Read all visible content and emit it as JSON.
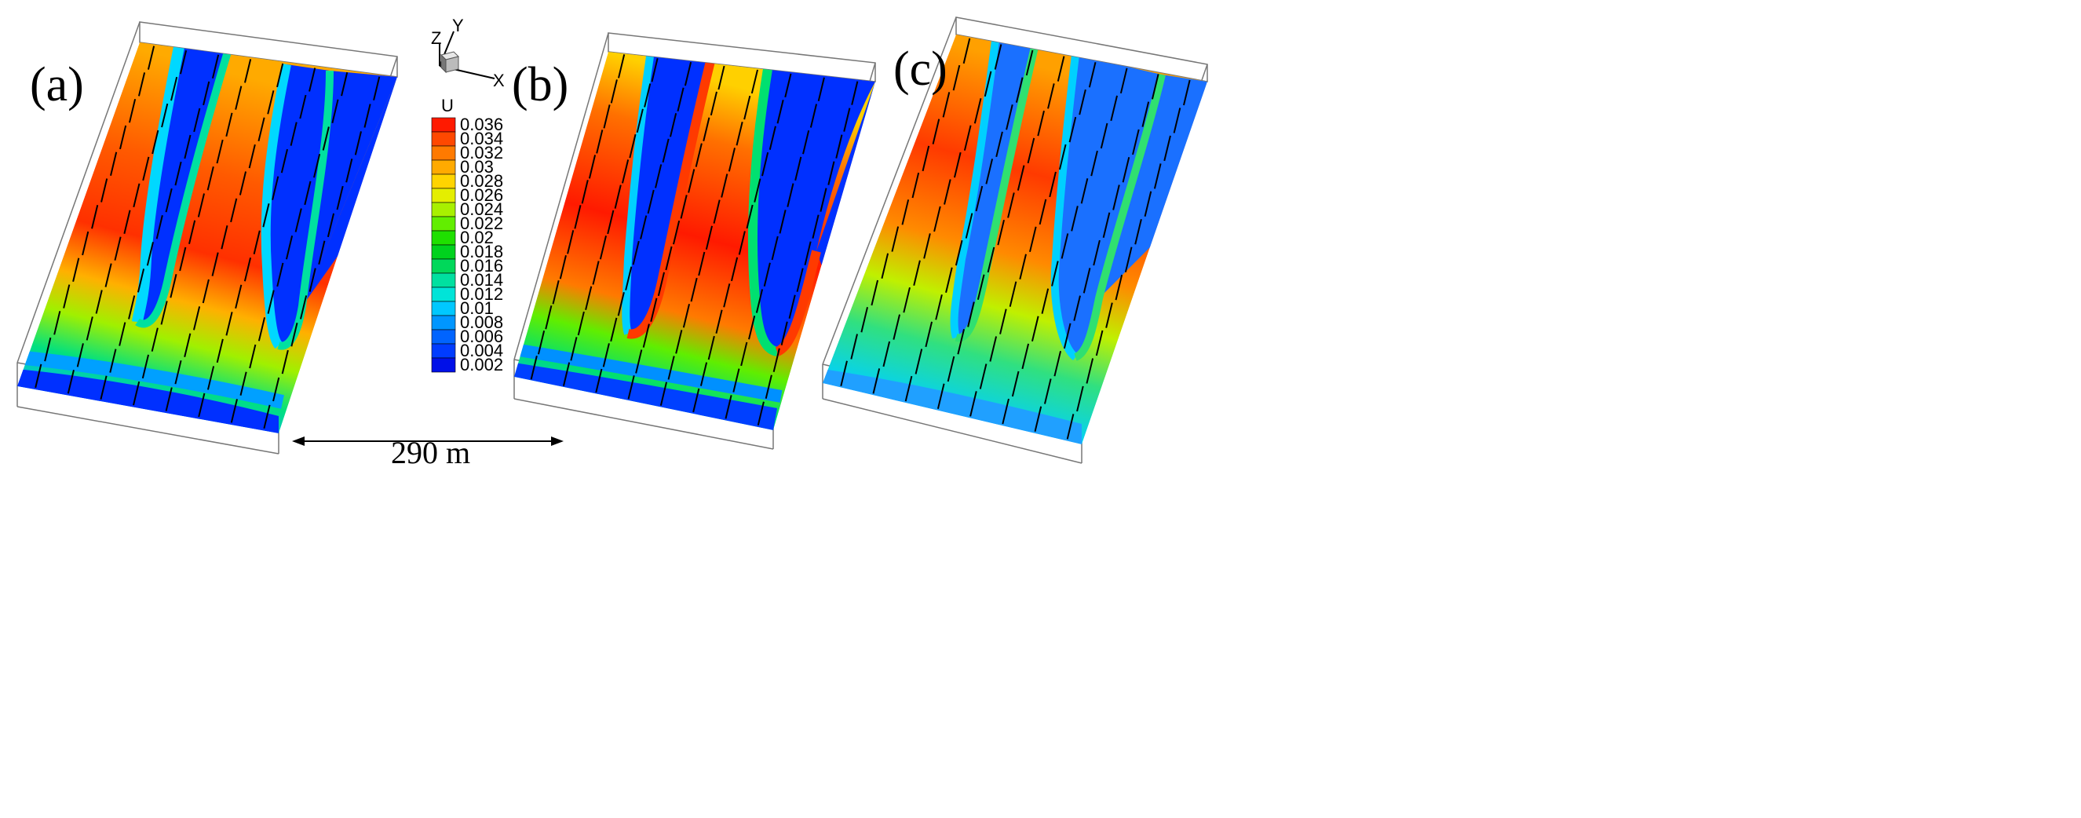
{
  "panels": [
    {
      "label": "(a)"
    },
    {
      "label": "(b)"
    },
    {
      "label": "(c)"
    }
  ],
  "axes_triad": {
    "z": "Z",
    "y": "Y",
    "x": "X"
  },
  "legend": {
    "title": "U",
    "levels": [
      "0.036",
      "0.034",
      "0.032",
      "0.03",
      "0.028",
      "0.026",
      "0.024",
      "0.022",
      "0.02",
      "0.018",
      "0.016",
      "0.014",
      "0.012",
      "0.01",
      "0.008",
      "0.006",
      "0.004",
      "0.002"
    ],
    "colors": [
      "#ff1a00",
      "#ff4800",
      "#ff7a00",
      "#ffaa00",
      "#ffd400",
      "#e4ee00",
      "#a8f000",
      "#62ee00",
      "#1fe000",
      "#00d21e",
      "#00d85a",
      "#00e0a0",
      "#00e4d8",
      "#00c8ff",
      "#0096ff",
      "#0064ff",
      "#003cff",
      "#0010e8"
    ]
  },
  "scale_bar": {
    "text": "290 m"
  }
}
